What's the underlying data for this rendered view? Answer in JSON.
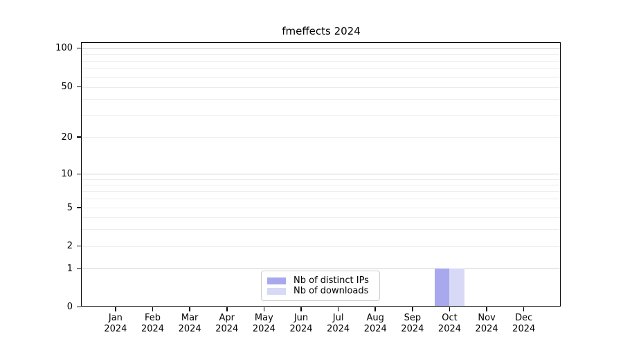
{
  "chart_data": {
    "type": "bar",
    "title": "fmeffects 2024",
    "x_axis": {
      "months": [
        "Jan",
        "Feb",
        "Mar",
        "Apr",
        "May",
        "Jun",
        "Jul",
        "Aug",
        "Sep",
        "Oct",
        "Nov",
        "Dec"
      ],
      "year": "2024"
    },
    "y_axis": {
      "scale": "symlog",
      "tick_labels": [
        "100",
        "50",
        "20",
        "10",
        "5",
        "2",
        "1",
        "0"
      ],
      "tick_values": [
        100,
        50,
        20,
        10,
        5,
        2,
        1,
        0
      ],
      "ylim": [
        0,
        113
      ],
      "grid": "horizontal",
      "grid_major_values": [
        1,
        10,
        100
      ],
      "grid_minor_values": [
        2,
        3,
        4,
        5,
        6,
        7,
        8,
        9,
        20,
        30,
        40,
        50,
        60,
        70,
        80,
        90
      ]
    },
    "series": [
      {
        "name": "Nb of distinct IPs",
        "color": "#a8a8ef",
        "values": [
          0,
          0,
          0,
          0,
          0,
          0,
          0,
          0,
          0,
          1,
          0,
          0
        ]
      },
      {
        "name": "Nb of downloads",
        "color": "#d8d8f7",
        "values": [
          0,
          0,
          0,
          0,
          0,
          0,
          0,
          0,
          0,
          1,
          0,
          0
        ]
      }
    ],
    "legend": {
      "position": "lower center",
      "entries": [
        "Nb of distinct IPs",
        "Nb of downloads"
      ]
    },
    "colors": {
      "background": "#ffffff",
      "spine": "#000000",
      "text": "#000000",
      "grid_major": "#d2d2d2",
      "grid_minor": "#ececec"
    }
  }
}
